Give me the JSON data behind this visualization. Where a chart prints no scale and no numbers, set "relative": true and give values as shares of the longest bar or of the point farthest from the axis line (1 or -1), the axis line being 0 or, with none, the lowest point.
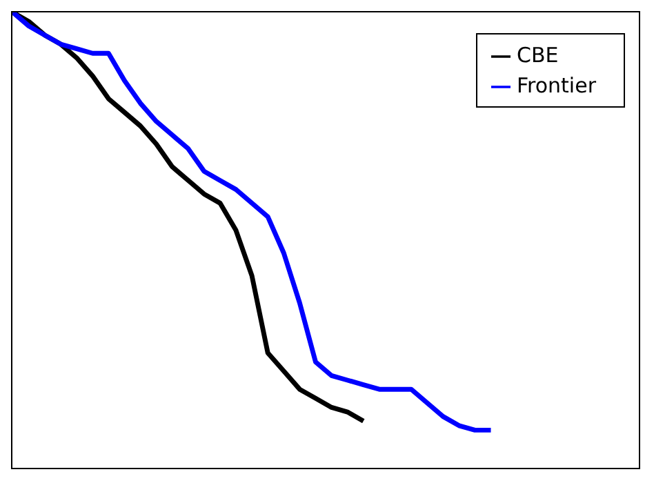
{
  "chart_data": {
    "type": "line",
    "relative": true,
    "legend": "top right",
    "marker": "none",
    "line_style": "solid",
    "categories": [
      null,
      null,
      null,
      null,
      null,
      null,
      null,
      null,
      null,
      null,
      null,
      null,
      null,
      null,
      null,
      null,
      null,
      null,
      null,
      null,
      null,
      null,
      null,
      null,
      null,
      null,
      null,
      null,
      null,
      null,
      null
    ],
    "series": [
      {
        "name": "CBE",
        "color": "#000000",
        "values": [
          1,
          0.98,
          0.95,
          0.93,
          0.9,
          0.86,
          0.81,
          0.78,
          0.75,
          0.71,
          0.66,
          0.63,
          0.6,
          0.58,
          0.52,
          0.42,
          0.25,
          0.21,
          0.17,
          0.15,
          0.13,
          0.12,
          0.1,
          null,
          null,
          null,
          null,
          null,
          null,
          null,
          null
        ]
      },
      {
        "name": "Frontier",
        "color": "#0000ff",
        "values": [
          1,
          0.97,
          0.95,
          0.93,
          0.92,
          0.91,
          0.91,
          0.85,
          0.8,
          0.76,
          0.73,
          0.7,
          0.65,
          0.63,
          0.61,
          0.58,
          0.55,
          0.47,
          0.36,
          0.23,
          0.2,
          0.19,
          0.18,
          0.17,
          0.17,
          0.17,
          0.14,
          0.11,
          0.09,
          0.08,
          0.08
        ]
      }
    ]
  }
}
